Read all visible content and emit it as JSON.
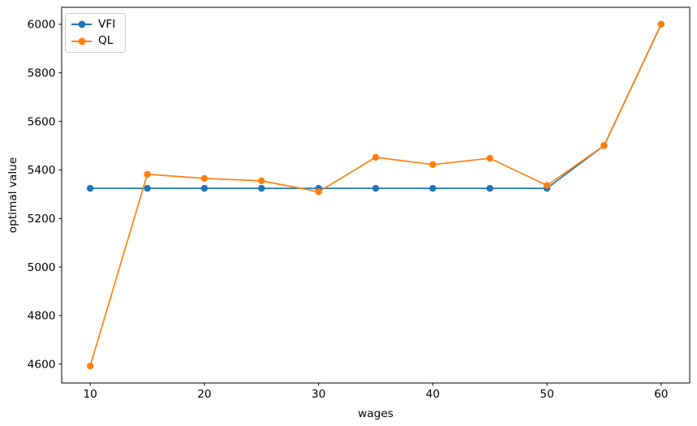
{
  "chart_data": {
    "type": "line",
    "title": "",
    "xlabel": "wages",
    "ylabel": "optimal value",
    "x": [
      10,
      15,
      20,
      25,
      30,
      35,
      40,
      45,
      50,
      55,
      60
    ],
    "series": [
      {
        "name": "VFI",
        "color": "#1f77b4",
        "values": [
          5324,
          5324,
          5324,
          5324,
          5324,
          5324,
          5324,
          5324,
          5324,
          5500,
          6000
        ]
      },
      {
        "name": "QL",
        "color": "#ff7f0e",
        "values": [
          4592,
          5382,
          5365,
          5355,
          5310,
          5452,
          5422,
          5448,
          5336,
          5500,
          6000
        ]
      }
    ],
    "xticks": [
      10,
      20,
      30,
      40,
      50,
      60
    ],
    "yticks": [
      4600,
      4800,
      5000,
      5200,
      5400,
      5600,
      5800,
      6000
    ],
    "xlim": [
      7.5,
      62.5
    ],
    "ylim": [
      4522,
      6070
    ],
    "grid": false,
    "legend_position": "upper left",
    "marker": "circle",
    "line_width": 1.7,
    "background": "#ffffff",
    "axis_color": "#000000"
  }
}
